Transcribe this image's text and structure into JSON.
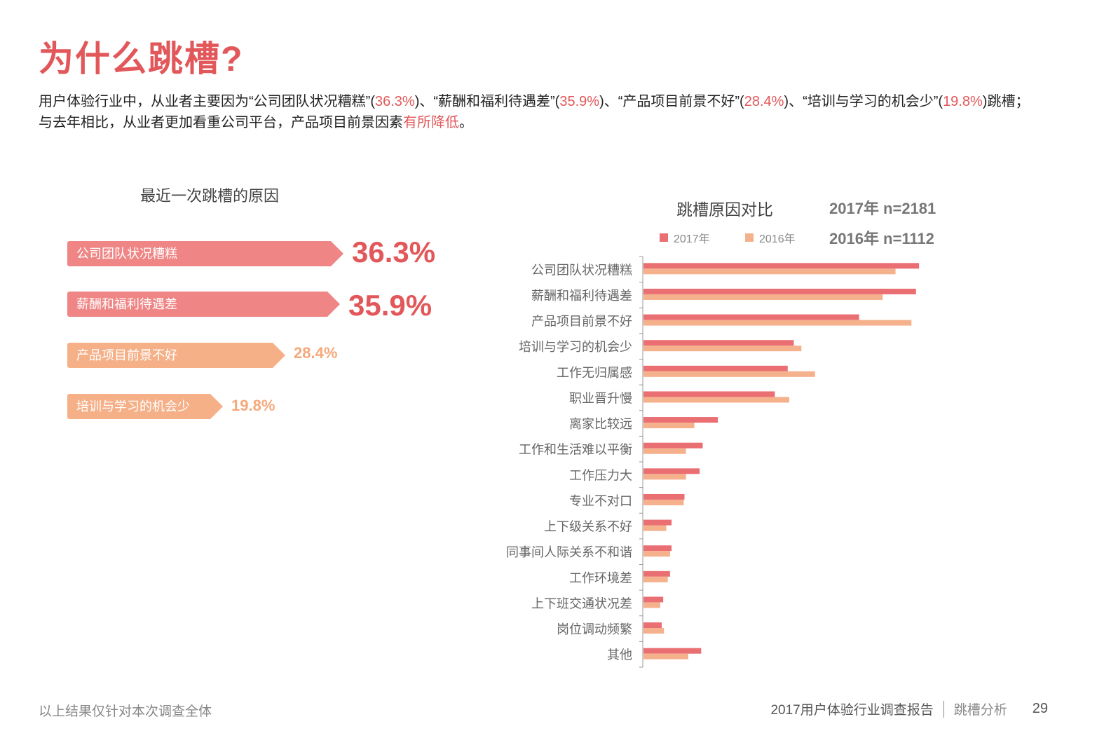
{
  "title": "为什么跳槽?",
  "intro": {
    "line1_a": "用户体验行业中，从业者主要因为“公司团队状况糟糕”(",
    "p1": "36.3%",
    "line1_b": ")、“薪酬和福利待遇差”(",
    "p2": "35.9%",
    "line1_c": ")、“产品项目前景不好”(",
    "p3": "28.4%",
    "line1_d": ")、“培训与学习的机会少”(",
    "p4": "19.8%",
    "line1_e": ")跳槽；",
    "line2_a": "与去年相比，从业者更加看重公司平台，产品项目前景因素",
    "line2_hl": "有所降低",
    "line2_b": "。"
  },
  "left_panel": {
    "title": "最近一次跳槽的原因",
    "items": [
      {
        "label": "公司团队状况糟糕",
        "value": "36.3%",
        "color": "#ef8585",
        "level": 36.3
      },
      {
        "label": "薪酬和福利待遇差",
        "value": "35.9%",
        "color": "#ef8585",
        "level": 35.9
      },
      {
        "label": "产品项目前景不好",
        "value": "28.4%",
        "color": "#f5b088",
        "level": 28.4
      },
      {
        "label": "培训与学习的机会少",
        "value": "19.8%",
        "color": "#f5b088",
        "level": 19.8
      }
    ],
    "value_colors": [
      "#e2585a",
      "#e2585a",
      "#f5a97a",
      "#f5a97a"
    ]
  },
  "chart_data": {
    "type": "bar",
    "orientation": "horizontal",
    "title": "跳槽原因对比",
    "n_labels": [
      "2017年 n=2181",
      "2016年 n=1112"
    ],
    "legend_position": "top",
    "categories": [
      "公司团队状况糟糕",
      "薪酬和福利待遇差",
      "产品项目前景不好",
      "培训与学习的机会少",
      "工作无归属感",
      "职业晋升慢",
      "离家比较远",
      "工作和生活难以平衡",
      "工作压力大",
      "专业不对口",
      "上下级关系不好",
      "同事间人际关系不和谐",
      "工作环境差",
      "上下班交通状况差",
      "岗位调动频繁",
      "其他"
    ],
    "series": [
      {
        "name": "2017年",
        "color": "#ea6f73",
        "values": [
          36.3,
          35.9,
          28.4,
          19.8,
          19.0,
          17.3,
          9.8,
          7.8,
          7.4,
          5.4,
          3.7,
          3.7,
          3.5,
          2.6,
          2.4,
          7.6
        ]
      },
      {
        "name": "2016年",
        "color": "#f5b08c",
        "values": [
          33.2,
          31.5,
          35.3,
          20.8,
          22.6,
          19.2,
          6.7,
          5.6,
          5.6,
          5.3,
          3.0,
          3.5,
          3.2,
          2.2,
          2.7,
          5.9
        ]
      }
    ],
    "xlim": [
      0,
      40
    ],
    "grid": false
  },
  "footer": {
    "note": "以上结果仅针对本次调查全体",
    "report": "2017用户体验行业调查报告",
    "section": "跳槽分析",
    "page": "29"
  }
}
